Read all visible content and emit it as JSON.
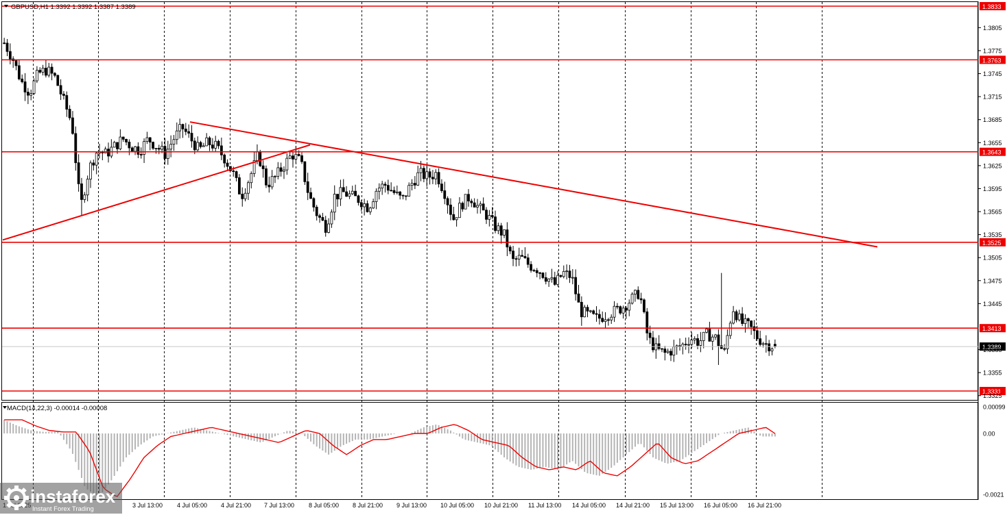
{
  "header": {
    "symbol_line": "GBPUSD,H1  1.3392 1.3392 1.3387 1.3389"
  },
  "macd": {
    "label": "MACD(14,22,3) -0.00014 -0.00008",
    "ticks": [
      "0.00099",
      "0.00",
      "-0.0021"
    ]
  },
  "watermark": {
    "brand": "instaforex",
    "tagline": "Instant Forex Trading"
  },
  "colors": {
    "level_lines": "#ee0000",
    "candle_bull": "#ffffff",
    "candle_bear": "#000000",
    "macd_hist": "#b4b4b4",
    "macd_signal": "#ee0000",
    "grid": "#000000"
  },
  "chart_data": {
    "type": "candlestick",
    "symbol": "GBPUSD",
    "timeframe": "H1",
    "ohlc_last": {
      "open": 1.3392,
      "high": 1.3392,
      "low": 1.3387,
      "close": 1.3389
    },
    "current_price": "1.3389",
    "ylim": [
      1.3325,
      1.3845
    ],
    "y_ticks": [
      "1.3805",
      "1.3775",
      "1.3745",
      "1.3715",
      "1.3685",
      "1.3655",
      "1.3625",
      "1.3595",
      "1.3565",
      "1.3535",
      "1.3505",
      "1.3475",
      "1.3445",
      "1.3385",
      "1.3355",
      "1.3325"
    ],
    "x_ticks": [
      "1 Jul 2025",
      "3 Jul 13:00",
      "4 Jul 05:00",
      "4 Jul 21:00",
      "7 Jul 13:00",
      "8 Jul 05:00",
      "8 Jul 21:00",
      "9 Jul 13:00",
      "10 Jul 05:00",
      "10 Jul 21:00",
      "11 Jul 13:00",
      "14 Jul 05:00",
      "14 Jul 21:00",
      "15 Jul 13:00",
      "16 Jul 05:00",
      "16 Jul 21:00"
    ],
    "levels": [
      "1.3833",
      "1.3763",
      "1.3643",
      "1.3525",
      "1.3413",
      "1.3331"
    ],
    "trendlines": [
      {
        "name": "descending resistance",
        "from": [
          1.3682
        ],
        "to": [
          1.3519
        ]
      },
      {
        "name": "ascending support",
        "from": [
          1.3528
        ],
        "to": [
          1.3652
        ]
      }
    ],
    "close_path": [
      1.3785,
      1.3765,
      1.3735,
      1.372,
      1.3745,
      1.375,
      1.374,
      1.371,
      1.368,
      1.357,
      1.362,
      1.3645,
      1.364,
      1.365,
      1.366,
      1.365,
      1.3645,
      1.366,
      1.365,
      1.364,
      1.366,
      1.3675,
      1.366,
      1.3645,
      1.3655,
      1.365,
      1.3635,
      1.3615,
      1.3585,
      1.361,
      1.364,
      1.36,
      1.361,
      1.3625,
      1.364,
      1.363,
      1.3585,
      1.356,
      1.3545,
      1.3585,
      1.359,
      1.3585,
      1.358,
      1.357,
      1.3595,
      1.36,
      1.359,
      1.358,
      1.36,
      1.3615,
      1.361,
      1.3615,
      1.359,
      1.3555,
      1.3575,
      1.3585,
      1.357,
      1.356,
      1.3545,
      1.3535,
      1.35,
      1.3505,
      1.3495,
      1.349,
      1.348,
      1.347,
      1.3485,
      1.348,
      1.3435,
      1.343,
      1.3425,
      1.343,
      1.3435,
      1.344,
      1.345,
      1.346,
      1.34,
      1.3385,
      1.338,
      1.3385,
      1.339,
      1.34,
      1.3395,
      1.3405,
      1.34,
      1.338,
      1.344,
      1.342,
      1.3415,
      1.34,
      1.3392,
      1.3389
    ],
    "macd_hist_path": [
      0.00045,
      0.00025,
      0.0001,
      5e-05,
      5e-05,
      -0.0006,
      -0.0018,
      -0.0021,
      -0.0015,
      -0.0008,
      -0.0004,
      -0.0001,
      0.0,
      0.0001,
      0.0002,
      0.0001,
      0.0,
      -0.0001,
      -0.0002,
      -0.0003,
      -0.0001,
      0.0001,
      0.0,
      -0.0004,
      -0.0007,
      -0.0004,
      -0.0002,
      -0.0002,
      -0.0001,
      0.0,
      0.0,
      0.0002,
      0.0003,
      0.0001,
      -0.0002,
      -0.0003,
      -0.0004,
      -0.0008,
      -0.0011,
      -0.0012,
      -0.0011,
      -0.0012,
      -0.0009,
      -0.0013,
      -0.0014,
      -0.0011,
      -0.0007,
      -0.0003,
      -0.0008,
      -0.001,
      -0.0009,
      -0.0006,
      -0.0003,
      0.0,
      0.0001,
      0.0002,
      -0.0001,
      -0.0001
    ]
  }
}
